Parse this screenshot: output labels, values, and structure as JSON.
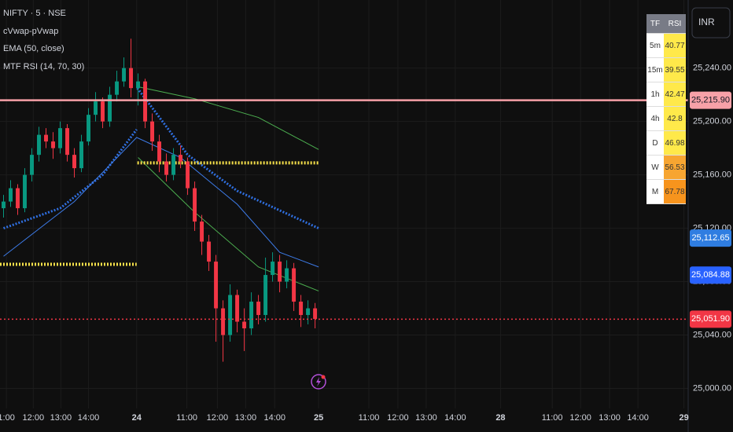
{
  "chart_data": {
    "type": "candlestick",
    "symbol": "NIFTY · 5 · NSE",
    "indicators": [
      "cVwap-pVwap",
      "EMA (50, close)",
      "MTF RSI (14, 70, 30)"
    ],
    "currency": "INR",
    "xlim": [
      -0.5,
      96.7
    ],
    "ylim": [
      24985,
      25291
    ],
    "grid": true,
    "up_color": "#089981",
    "down_color": "#f23645",
    "yticks": [
      {
        "value": 25000,
        "label": "25,000.00"
      },
      {
        "value": 25040,
        "label": "25,040.00"
      },
      {
        "value": 25080,
        "label": "25,080.00"
      },
      {
        "value": 25120,
        "label": "25,120.00"
      },
      {
        "value": 25160,
        "label": "25,160.00"
      },
      {
        "value": 25200,
        "label": "25,200.00"
      },
      {
        "value": 25240,
        "label": "25,240.00"
      }
    ],
    "xticks": [
      {
        "value": 0.4,
        "label": "1:00"
      },
      {
        "value": 4.2,
        "label": "12:00"
      },
      {
        "value": 8.1,
        "label": "13:00"
      },
      {
        "value": 12,
        "label": "14:00"
      },
      {
        "value": 18.8,
        "label": "24"
      },
      {
        "value": 25.9,
        "label": "11:00"
      },
      {
        "value": 30.2,
        "label": "12:00"
      },
      {
        "value": 34.2,
        "label": "13:00"
      },
      {
        "value": 38.3,
        "label": "14:00"
      },
      {
        "value": 44.5,
        "label": "25"
      },
      {
        "value": 51.6,
        "label": "11:00"
      },
      {
        "value": 55.7,
        "label": "12:00"
      },
      {
        "value": 59.7,
        "label": "13:00"
      },
      {
        "value": 63.8,
        "label": "14:00"
      },
      {
        "value": 70.2,
        "label": "28"
      },
      {
        "value": 77.5,
        "label": "11:00"
      },
      {
        "value": 81.5,
        "label": "12:00"
      },
      {
        "value": 85.6,
        "label": "13:00"
      },
      {
        "value": 89.6,
        "label": "14:00"
      },
      {
        "value": 96.1,
        "label": "29"
      }
    ],
    "ohlc": [
      [
        25135,
        25145,
        25128,
        25140
      ],
      [
        25140,
        25156,
        25136,
        25150
      ],
      [
        25150,
        25153,
        25130,
        25135
      ],
      [
        25135,
        25165,
        25132,
        25160
      ],
      [
        25160,
        25180,
        25155,
        25175
      ],
      [
        25175,
        25196,
        25170,
        25190
      ],
      [
        25190,
        25195,
        25180,
        25185
      ],
      [
        25185,
        25192,
        25172,
        25180
      ],
      [
        25180,
        25200,
        25176,
        25195
      ],
      [
        25195,
        25198,
        25170,
        25175
      ],
      [
        25175,
        25180,
        25158,
        25165
      ],
      [
        25165,
        25190,
        25162,
        25185
      ],
      [
        25185,
        25210,
        25182,
        25205
      ],
      [
        25205,
        25222,
        25200,
        25215
      ],
      [
        25215,
        25218,
        25195,
        25200
      ],
      [
        25200,
        25226,
        25196,
        25220
      ],
      [
        25220,
        25238,
        25215,
        25230
      ],
      [
        25230,
        25248,
        25226,
        25240
      ],
      [
        25240,
        25262,
        25218,
        25225
      ],
      [
        25225,
        25236,
        25212,
        25230
      ],
      [
        25230,
        25232,
        25195,
        25200
      ],
      [
        25200,
        25206,
        25178,
        25185
      ],
      [
        25185,
        25190,
        25162,
        25170
      ],
      [
        25170,
        25176,
        25155,
        25160
      ],
      [
        25160,
        25180,
        25156,
        25175
      ],
      [
        25175,
        25182,
        25165,
        25170
      ],
      [
        25170,
        25173,
        25145,
        25150
      ],
      [
        25150,
        25155,
        25118,
        25125
      ],
      [
        25125,
        25130,
        25100,
        25110
      ],
      [
        25110,
        25115,
        25088,
        25095
      ],
      [
        25095,
        25100,
        25035,
        25060
      ],
      [
        25060,
        25066,
        25020,
        25040
      ],
      [
        25040,
        25078,
        25035,
        25070
      ],
      [
        25070,
        25074,
        25042,
        25050
      ],
      [
        25050,
        25060,
        25028,
        25045
      ],
      [
        25045,
        25072,
        25040,
        25065
      ],
      [
        25065,
        25070,
        25048,
        25055
      ],
      [
        25055,
        25098,
        25050,
        25085
      ],
      [
        25085,
        25102,
        25080,
        25095
      ],
      [
        25095,
        25100,
        25072,
        25080
      ],
      [
        25080,
        25096,
        25075,
        25090
      ],
      [
        25090,
        25094,
        25058,
        25065
      ],
      [
        25065,
        25070,
        25046,
        25055
      ],
      [
        25055,
        25066,
        25048,
        25060
      ],
      [
        25060,
        25064,
        25045,
        25052
      ]
    ],
    "overlays": [
      {
        "color": "#2f6fe0",
        "width": 3,
        "dotted": true,
        "x": [
          0,
          8,
          14,
          18.8,
          null,
          18.9,
          26,
          33,
          44.5
        ],
        "values": [
          25120,
          25135,
          25160,
          25194,
          null,
          25225,
          25175,
          25148,
          25120
        ]
      },
      {
        "color": "#3d7be8",
        "width": 1,
        "x": [
          0,
          10,
          18.8,
          25,
          33,
          39,
          44.5
        ],
        "values": [
          25099,
          25140,
          25188,
          25173,
          25138,
          25102,
          25091
        ]
      },
      {
        "color": "#4caf50",
        "width": 1,
        "x": [
          19,
          27,
          36,
          44.5
        ],
        "values": [
          25226,
          25217,
          25203,
          25179
        ]
      },
      {
        "color": "#4caf50",
        "width": 1,
        "x": [
          19,
          27,
          36,
          44.5
        ],
        "values": [
          25173,
          25132,
          25091,
          25073
        ]
      },
      {
        "color": "#f5e04a",
        "width": 4,
        "dotted": true,
        "x": [
          -0.5,
          18.8
        ],
        "values": [
          25093,
          25093
        ]
      },
      {
        "color": "#f5e04a",
        "width": 4,
        "dotted": true,
        "x": [
          18.9,
          44.5
        ],
        "values": [
          25169,
          25169
        ]
      }
    ],
    "price_lines": [
      {
        "value": 25215.9,
        "label": "25,215.90",
        "color": "#f7a1a8",
        "text_color": "#131722",
        "line": "solid"
      },
      {
        "value": 25112.65,
        "label": "25,112.65",
        "color": "#2f7de1",
        "text_color": "#ffffff"
      },
      {
        "value": 25084.88,
        "label": "25,084.88",
        "color": "#2962ff",
        "text_color": "#ffffff"
      },
      {
        "value": 25051.9,
        "label": "25,051.90",
        "color": "#f23645",
        "text_color": "#ffffff",
        "line": "dotted"
      }
    ],
    "rsi_table": {
      "header": [
        "TF",
        "RSI"
      ],
      "rows": [
        {
          "tf": "5m",
          "rsi": 40.77,
          "color": "#ffe94a"
        },
        {
          "tf": "15m",
          "rsi": 39.55,
          "color": "#ffe94a"
        },
        {
          "tf": "1h",
          "rsi": 42.47,
          "color": "#ffe94a"
        },
        {
          "tf": "4h",
          "rsi": 42.8,
          "color": "#ffe94a"
        },
        {
          "tf": "D",
          "rsi": 46.98,
          "color": "#ffe94a"
        },
        {
          "tf": "W",
          "rsi": 56.53,
          "color": "#f7a531"
        },
        {
          "tf": "M",
          "rsi": 67.78,
          "color": "#f7941d"
        }
      ]
    }
  }
}
